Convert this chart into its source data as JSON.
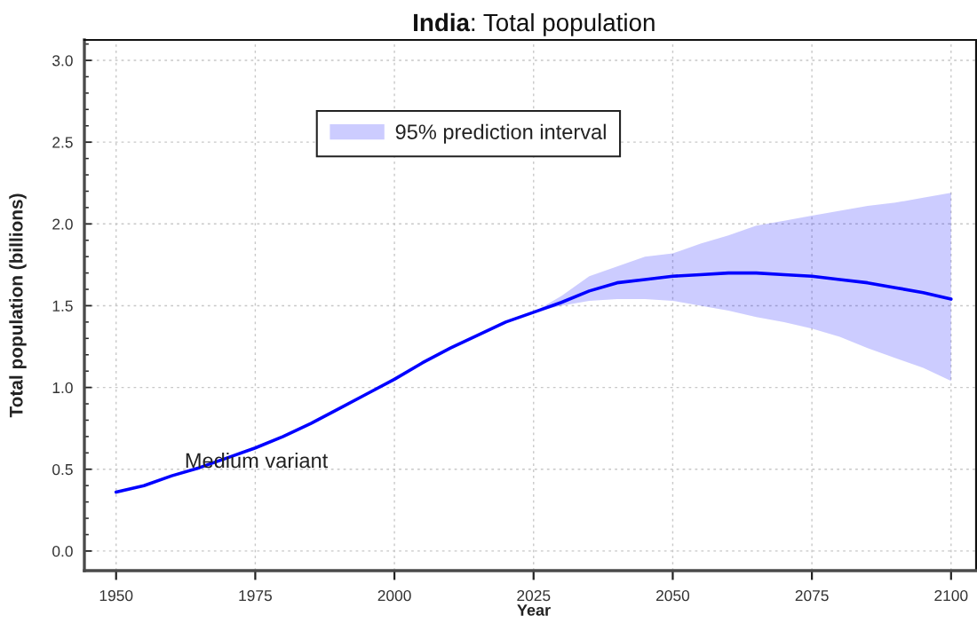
{
  "chart_data": {
    "type": "line",
    "title": "India: Total population",
    "xlabel": "Year",
    "ylabel": "Total population (billions)",
    "series": [
      {
        "name": "95% prediction interval",
        "color": "#0000ff",
        "x": [
          1950,
          1955,
          1960,
          1965,
          1970,
          1975,
          1980,
          1985,
          1990,
          1995,
          2000,
          2005,
          2010,
          2015,
          2020,
          2025,
          2030,
          2035,
          2040,
          2045,
          2050,
          2055,
          2060,
          2065,
          2070,
          2075,
          2080,
          2085,
          2090,
          2095,
          2100
        ],
        "values": [
          0.36,
          0.4,
          0.46,
          0.51,
          0.57,
          0.63,
          0.7,
          0.78,
          0.87,
          0.96,
          1.05,
          1.15,
          1.24,
          1.32,
          1.4,
          1.46,
          1.52,
          1.59,
          1.64,
          1.66,
          1.68,
          1.69,
          1.7,
          1.7,
          1.69,
          1.68,
          1.66,
          1.64,
          1.61,
          1.58,
          1.54
        ],
        "lower": [
          null,
          null,
          null,
          null,
          null,
          null,
          null,
          null,
          null,
          null,
          null,
          null,
          null,
          null,
          null,
          1.46,
          1.5,
          1.53,
          1.54,
          1.54,
          1.53,
          1.5,
          1.47,
          1.43,
          1.4,
          1.36,
          1.31,
          1.24,
          1.18,
          1.12,
          1.04
        ],
        "upper": [
          null,
          null,
          null,
          null,
          null,
          null,
          null,
          null,
          null,
          null,
          null,
          null,
          null,
          null,
          null,
          1.46,
          1.56,
          1.68,
          1.74,
          1.8,
          1.82,
          1.88,
          1.93,
          1.99,
          2.02,
          2.05,
          2.08,
          2.11,
          2.13,
          2.16,
          2.19
        ]
      }
    ],
    "annotations": [
      "Medium variant"
    ],
    "xlim": [
      1944.3,
      2104.5
    ],
    "ylim": [
      -0.12,
      3.125
    ],
    "xticks": [
      1950,
      1975,
      2000,
      2025,
      2050,
      2075,
      2100
    ],
    "yticks": [
      {
        "value": 0,
        "label": "0.0"
      },
      {
        "value": 0.5,
        "label": "0.5"
      },
      {
        "value": 1,
        "label": "1.0"
      },
      {
        "value": 1.5,
        "label": "1.5"
      },
      {
        "value": 2,
        "label": "2.0"
      },
      {
        "value": 2.5,
        "label": "2.5"
      },
      {
        "value": 3,
        "label": "3.0"
      },
      {
        "value": 0.1,
        "label": null
      },
      {
        "value": 0.2,
        "label": null
      },
      {
        "value": 0.3,
        "label": null
      },
      {
        "value": 0.4,
        "label": null
      },
      {
        "value": 0.6,
        "label": null
      },
      {
        "value": 0.7,
        "label": null
      },
      {
        "value": 0.8,
        "label": null
      },
      {
        "value": 0.9,
        "label": null
      },
      {
        "value": 1.1,
        "label": null
      },
      {
        "value": 1.2,
        "label": null
      },
      {
        "value": 1.3,
        "label": null
      },
      {
        "value": 1.4,
        "label": null
      },
      {
        "value": 1.6,
        "label": null
      },
      {
        "value": 1.7,
        "label": null
      },
      {
        "value": 1.8,
        "label": null
      },
      {
        "value": 1.9,
        "label": null
      },
      {
        "value": 2.1,
        "label": null
      },
      {
        "value": 2.2,
        "label": null
      },
      {
        "value": 2.3,
        "label": null
      },
      {
        "value": 2.4,
        "label": null
      },
      {
        "value": 2.6,
        "label": null
      },
      {
        "value": 2.7,
        "label": null
      },
      {
        "value": 2.8,
        "label": null
      },
      {
        "value": 2.9,
        "label": null
      },
      {
        "value": 3.1,
        "label": null
      }
    ],
    "grid": true,
    "legend": "top left",
    "line_style": "solid"
  }
}
